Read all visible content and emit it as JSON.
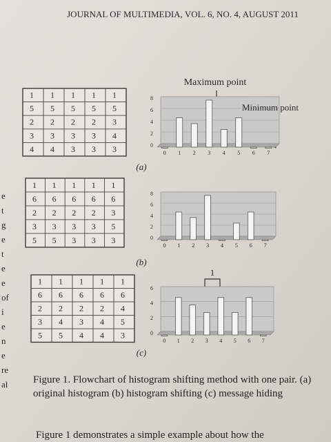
{
  "header": "JOURNAL OF MULTIMEDIA, VOL. 6, NO. 4, AUGUST 2011",
  "figures": [
    {
      "grid": [
        [
          1,
          1,
          1,
          1,
          1
        ],
        [
          5,
          5,
          5,
          5,
          5
        ],
        [
          2,
          2,
          2,
          2,
          3
        ],
        [
          3,
          3,
          3,
          3,
          4
        ],
        [
          4,
          4,
          3,
          3,
          3
        ]
      ],
      "histogram": {
        "type": "bar",
        "x": [
          0,
          1,
          2,
          3,
          4,
          5,
          6,
          7
        ],
        "values": [
          0,
          5,
          4,
          8,
          3,
          5,
          0,
          0
        ],
        "ylim": [
          0,
          8
        ],
        "yticks": [
          0,
          2,
          4,
          6,
          8
        ]
      },
      "label": "(a)",
      "annotations": [
        "Maximum point",
        "Minimum point"
      ]
    },
    {
      "grid": [
        [
          1,
          1,
          1,
          1,
          1
        ],
        [
          6,
          6,
          6,
          6,
          6
        ],
        [
          2,
          2,
          2,
          2,
          3
        ],
        [
          3,
          3,
          3,
          3,
          5
        ],
        [
          5,
          5,
          3,
          3,
          3
        ]
      ],
      "histogram": {
        "type": "bar",
        "x": [
          0,
          1,
          2,
          3,
          4,
          5,
          6,
          7
        ],
        "values": [
          0,
          5,
          4,
          8,
          0,
          3,
          5,
          0
        ],
        "ylim": [
          0,
          8
        ],
        "yticks": [
          0,
          2,
          4,
          6,
          8
        ]
      },
      "label": "(b)",
      "annotations": []
    },
    {
      "grid": [
        [
          1,
          1,
          1,
          1,
          1
        ],
        [
          6,
          6,
          6,
          6,
          6
        ],
        [
          2,
          2,
          2,
          2,
          4
        ],
        [
          3,
          4,
          3,
          4,
          5
        ],
        [
          5,
          5,
          4,
          4,
          3
        ]
      ],
      "histogram": {
        "type": "bar",
        "x": [
          0,
          1,
          2,
          3,
          4,
          5,
          6,
          7
        ],
        "values": [
          0,
          5,
          4,
          3,
          5,
          3,
          5,
          0
        ],
        "ylim": [
          0,
          6
        ],
        "yticks": [
          0,
          2,
          4,
          6
        ]
      },
      "label": "(c)",
      "annotations": [
        "1"
      ]
    }
  ],
  "margin_text": [
    "e",
    "t",
    "g",
    "e",
    "t",
    "e",
    "e",
    "of",
    "i",
    "e",
    "n",
    "e",
    "re",
    "al"
  ],
  "caption": "Figure 1. Flowchart of histogram shifting method with one pair. (a) original histogram (b) histogram shifting (c) message hiding",
  "body": "Figure 1 demonstrates a simple example about how the"
}
